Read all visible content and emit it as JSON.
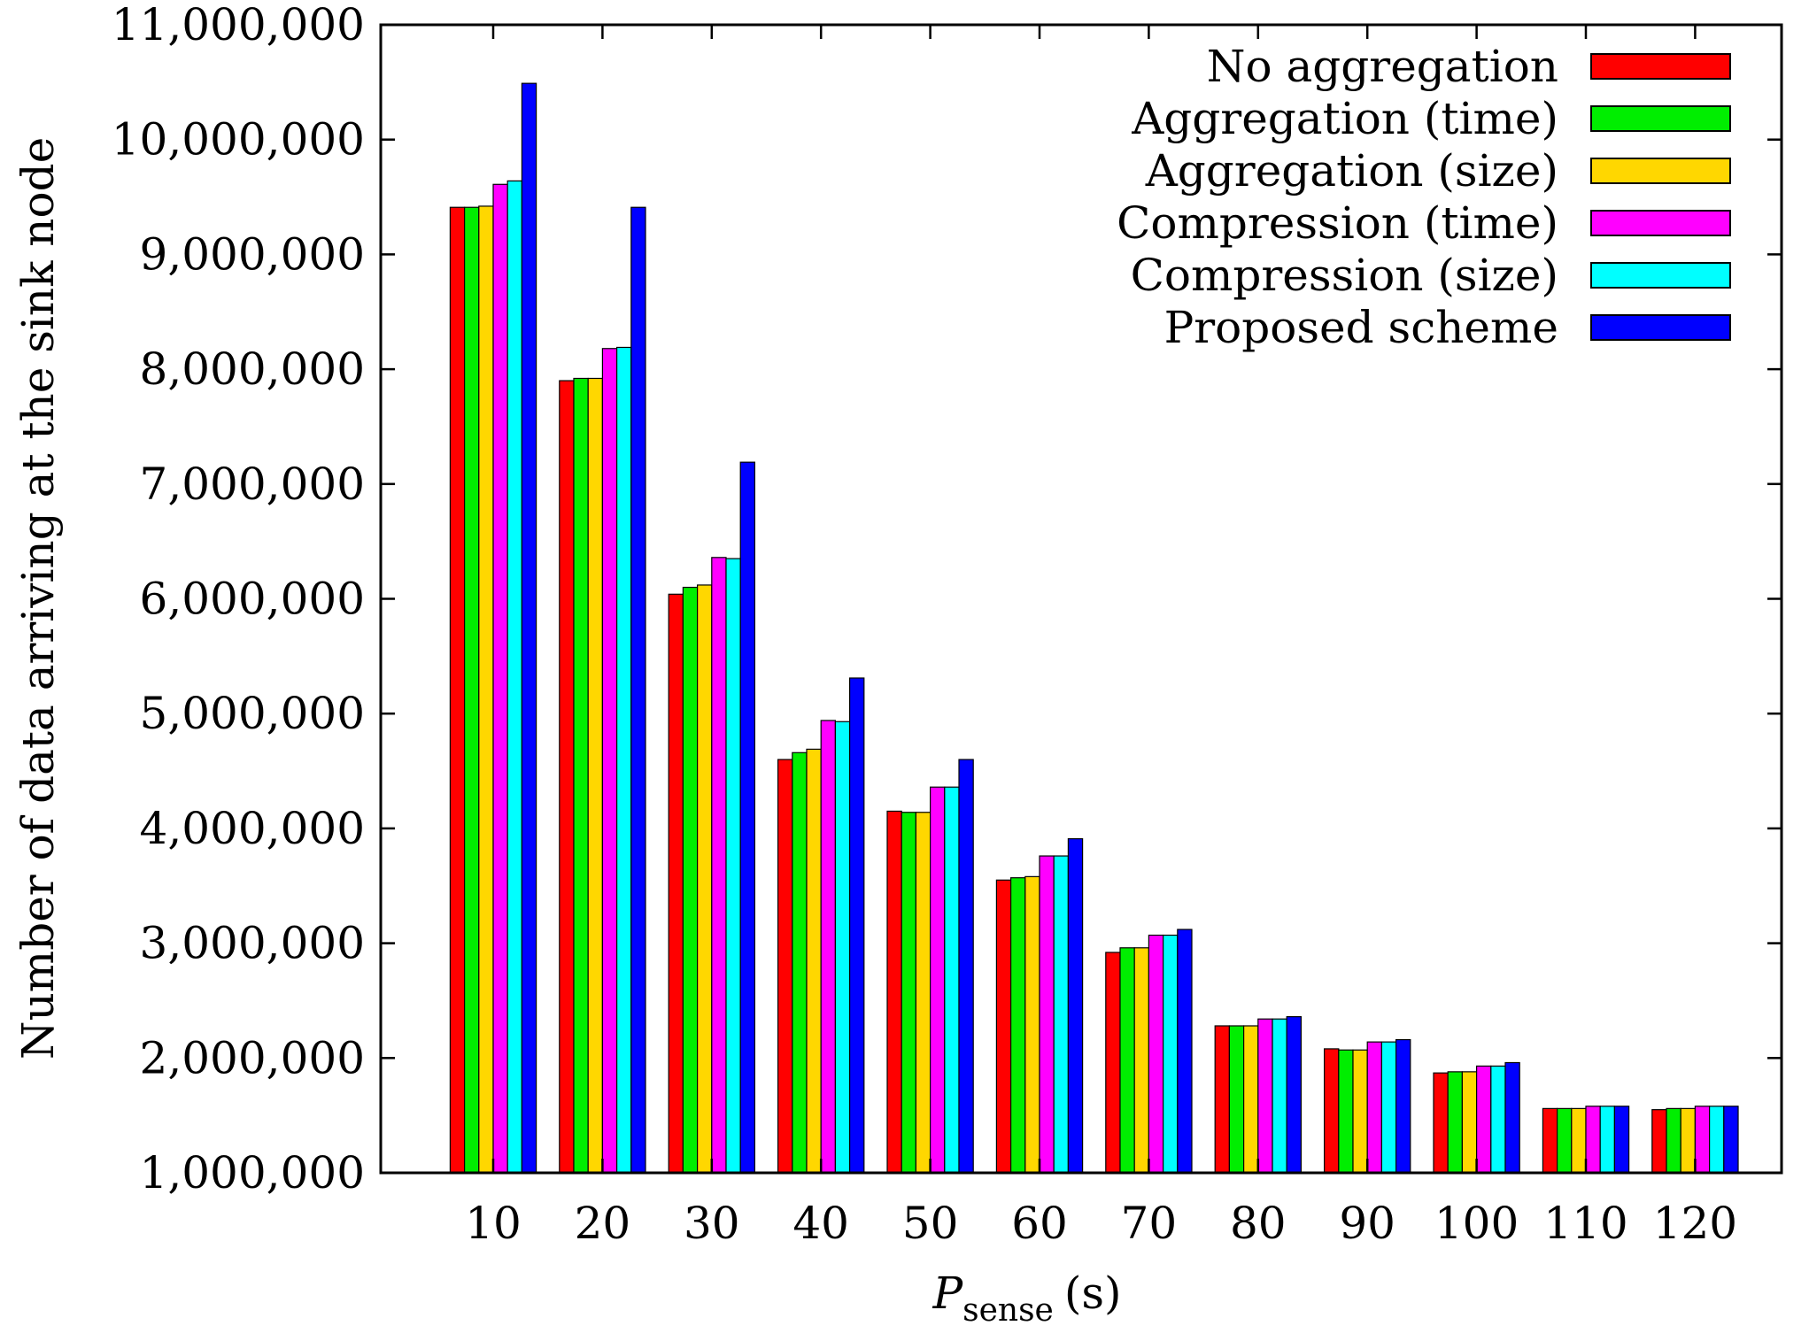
{
  "chart_data": {
    "type": "bar",
    "title": "",
    "xlabel": {
      "main": "P",
      "subscript": "sense",
      "unit": "(s)"
    },
    "ylabel": "Number of data arriving at the sink node",
    "ylim": [
      1000000,
      11000000
    ],
    "yticks": [
      1000000,
      2000000,
      3000000,
      4000000,
      5000000,
      6000000,
      7000000,
      8000000,
      9000000,
      10000000,
      11000000
    ],
    "ytick_labels": [
      "1,000,000",
      "2,000,000",
      "3,000,000",
      "4,000,000",
      "5,000,000",
      "6,000,000",
      "7,000,000",
      "8,000,000",
      "9,000,000",
      "10,000,000",
      "11,000,000"
    ],
    "categories": [
      "10",
      "20",
      "30",
      "40",
      "50",
      "60",
      "70",
      "80",
      "90",
      "100",
      "110",
      "120"
    ],
    "legend_position": "top-right",
    "grid": false,
    "series": [
      {
        "name": "No aggregation",
        "color": "#ff0000",
        "values": [
          9410000,
          7900000,
          6040000,
          4600000,
          4150000,
          3550000,
          2920000,
          2280000,
          2080000,
          1870000,
          1560000,
          1550000
        ]
      },
      {
        "name": "Aggregation (time)",
        "color": "#00ee00",
        "values": [
          9410000,
          7920000,
          6100000,
          4660000,
          4140000,
          3570000,
          2960000,
          2280000,
          2070000,
          1880000,
          1560000,
          1560000
        ]
      },
      {
        "name": "Aggregation (size)",
        "color": "#ffd700",
        "values": [
          9420000,
          7920000,
          6120000,
          4690000,
          4140000,
          3580000,
          2960000,
          2280000,
          2070000,
          1880000,
          1560000,
          1560000
        ]
      },
      {
        "name": "Compression (time)",
        "color": "#ff00ff",
        "values": [
          9610000,
          8180000,
          6360000,
          4940000,
          4360000,
          3760000,
          3070000,
          2340000,
          2140000,
          1930000,
          1580000,
          1580000
        ]
      },
      {
        "name": "Compression (size)",
        "color": "#00ffff",
        "values": [
          9640000,
          8190000,
          6350000,
          4930000,
          4360000,
          3760000,
          3070000,
          2340000,
          2140000,
          1930000,
          1580000,
          1580000
        ]
      },
      {
        "name": "Proposed scheme",
        "color": "#0000ff",
        "values": [
          10490000,
          9410000,
          7190000,
          5310000,
          4600000,
          3910000,
          3120000,
          2360000,
          2160000,
          1960000,
          1580000,
          1580000
        ]
      }
    ]
  }
}
